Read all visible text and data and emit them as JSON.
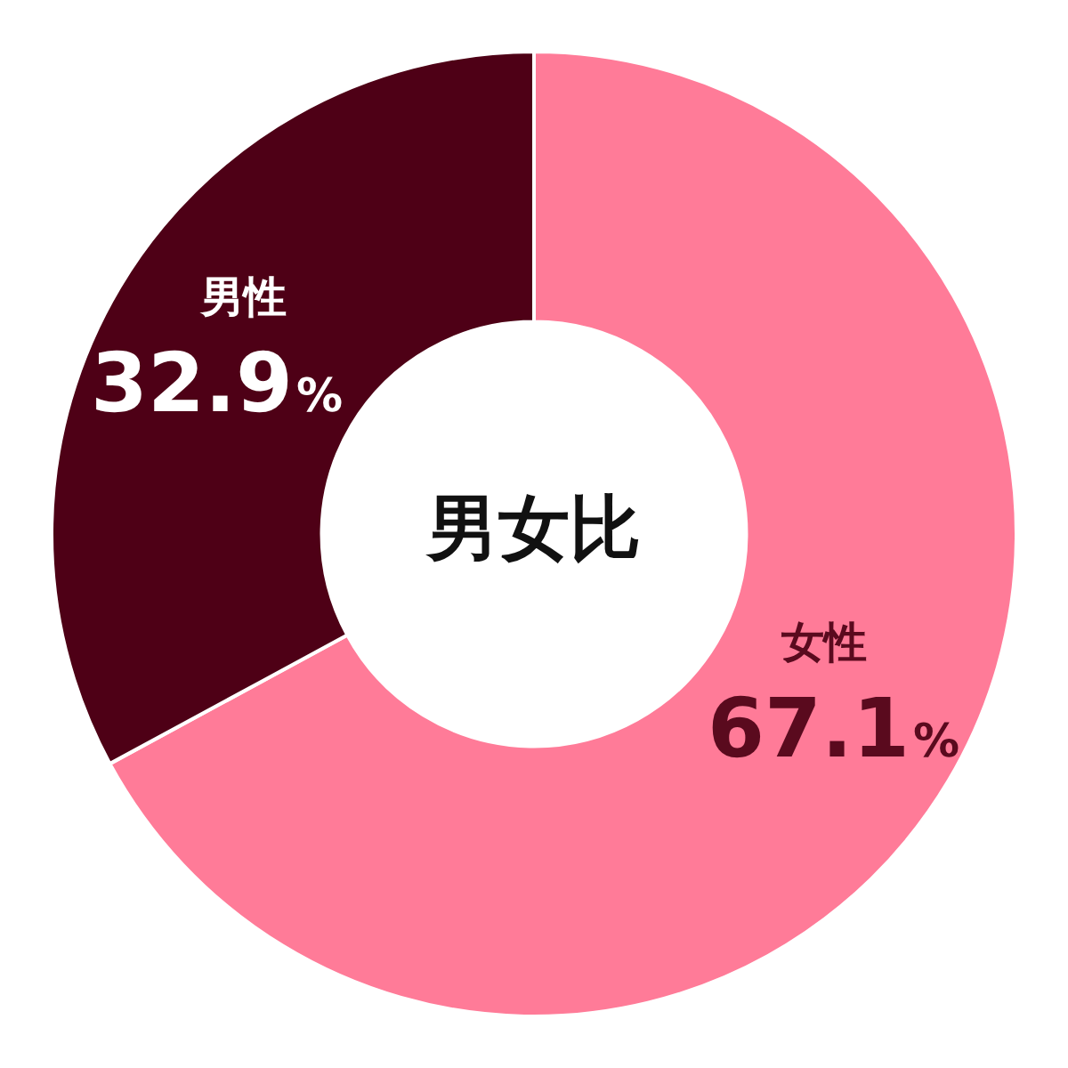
{
  "chart_data": {
    "type": "donut",
    "title": "男女比",
    "categories": [
      "女性",
      "男性"
    ],
    "values": [
      67.1,
      32.9
    ],
    "colors": [
      "#ff7b98",
      "#4e0016"
    ],
    "value_labels": [
      "67.1%",
      "32.9%"
    ],
    "legend": false
  }
}
